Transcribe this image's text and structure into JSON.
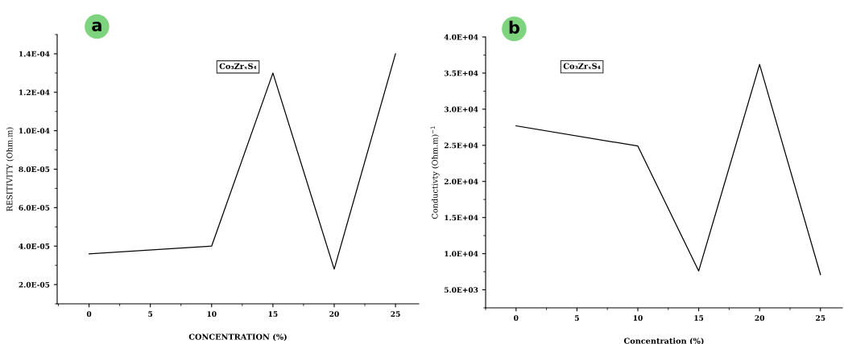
{
  "chart_data": [
    {
      "type": "line",
      "title": "a",
      "xlabel": "CONCENTRATION (%)",
      "ylabel": "RESITIVITY (Ohm.m)",
      "annotations": [
        "Co₃ZrₓS₄"
      ],
      "x": [
        0,
        10,
        15,
        20,
        25
      ],
      "series": [
        {
          "color": "#000000",
          "values": [
            3.6e-05,
            4e-05,
            0.00013,
            2.8e-05,
            0.00014
          ]
        }
      ],
      "xlim": [
        -2.6,
        26.9
      ],
      "xticks": [
        0,
        5,
        10,
        15,
        20,
        25
      ],
      "ylim": [
        1e-05,
        0.00015
      ],
      "yticks": [
        {
          "value": 2e-05,
          "label": "2.0E-05"
        },
        {
          "value": 4e-05,
          "label": "4.0E-05"
        },
        {
          "value": 6e-05,
          "label": "6.0E-05"
        },
        {
          "value": 8e-05,
          "label": "8.0E-05"
        },
        {
          "value": 0.0001,
          "label": "1.0E-04"
        },
        {
          "value": 0.00012,
          "label": "1.2E-04"
        },
        {
          "value": 0.00014,
          "label": "1.4E-04"
        }
      ],
      "grid": false,
      "legend": false,
      "marker": "none",
      "line_style": "solid"
    },
    {
      "type": "line",
      "title": "b",
      "xlabel": "Concentration (%)",
      "ylabel": "Conductivty (Ohm.m)$^{−1}$",
      "annotations": [
        "Co₃ZrₓS₄"
      ],
      "x": [
        0,
        10,
        15,
        20,
        25
      ],
      "series": [
        {
          "color": "#000000",
          "values": [
            27700,
            24900,
            7600,
            36200,
            7100
          ]
        }
      ],
      "xlim": [
        -2.5,
        26.8
      ],
      "xticks": [
        0,
        5,
        10,
        15,
        20,
        25
      ],
      "ylim": [
        2500,
        40000
      ],
      "yticks": [
        {
          "value": 5000,
          "label": "5.0E+03"
        },
        {
          "value": 10000,
          "label": "1.0E+04"
        },
        {
          "value": 15000,
          "label": "1.5E+04"
        },
        {
          "value": 20000,
          "label": "2.0E+04"
        },
        {
          "value": 25000,
          "label": "2.5E+04"
        },
        {
          "value": 30000,
          "label": "3.0E+04"
        },
        {
          "value": 35000,
          "label": "3.5E+04"
        },
        {
          "value": 40000,
          "label": "4.0E+04"
        }
      ],
      "grid": false,
      "legend": false,
      "marker": "none",
      "line_style": "solid"
    }
  ]
}
